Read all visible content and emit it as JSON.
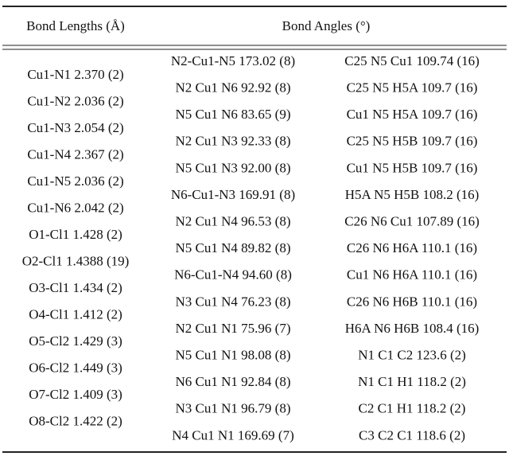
{
  "header": {
    "lengths_title": "Bond Lengths (Å)",
    "angles_title": "Bond Angles (°)"
  },
  "bond_lengths": [
    "Cu1-N1 2.370 (2)",
    "Cu1-N2 2.036 (2)",
    "Cu1-N3 2.054 (2)",
    "Cu1-N4 2.367 (2)",
    "Cu1-N5 2.036 (2)",
    "Cu1-N6 2.042 (2)",
    "O1-Cl1 1.428 (2)",
    "O2-Cl1 1.4388 (19)",
    "O3-Cl1 1.434 (2)",
    "O4-Cl1 1.412 (2)",
    "O5-Cl2 1.429 (3)",
    "O6-Cl2 1.449 (3)",
    "O7-Cl2 1.409 (3)",
    "O8-Cl2 1.422 (2)"
  ],
  "bond_angles": [
    [
      "N2-Cu1-N5 173.02 (8)",
      "C25 N5 Cu1 109.74 (16)"
    ],
    [
      "N2 Cu1 N6 92.92 (8)",
      "C25 N5 H5A 109.7 (16)"
    ],
    [
      "N5 Cu1 N6 83.65 (9)",
      "Cu1 N5 H5A 109.7 (16)"
    ],
    [
      "N2 Cu1 N3 92.33 (8)",
      "C25 N5 H5B 109.7 (16)"
    ],
    [
      "N5 Cu1 N3 92.00 (8)",
      "Cu1 N5 H5B 109.7 (16)"
    ],
    [
      "N6-Cu1-N3 169.91 (8)",
      "H5A N5 H5B 108.2 (16)"
    ],
    [
      "N2 Cu1 N4 96.53 (8)",
      "C26 N6 Cu1 107.89 (16)"
    ],
    [
      "N5 Cu1 N4 89.82 (8)",
      "C26 N6 H6A 110.1 (16)"
    ],
    [
      "N6-Cu1-N4 94.60 (8)",
      "Cu1 N6 H6A 110.1 (16)"
    ],
    [
      "N3 Cu1 N4 76.23 (8)",
      "C26 N6 H6B 110.1 (16)"
    ],
    [
      "N2 Cu1 N1 75.96 (7)",
      "H6A N6 H6B 108.4 (16)"
    ],
    [
      "N5 Cu1 N1 98.08 (8)",
      "N1 C1 C2 123.6 (2)"
    ],
    [
      "N6 Cu1 N1 92.84 (8)",
      "N1 C1 H1 118.2 (2)"
    ],
    [
      "N3 Cu1 N1 96.79 (8)",
      "C2 C1 H1 118.2 (2)"
    ],
    [
      "N4 Cu1 N1 169.69 (7)",
      "C3 C2 C1 118.6 (2)"
    ]
  ]
}
